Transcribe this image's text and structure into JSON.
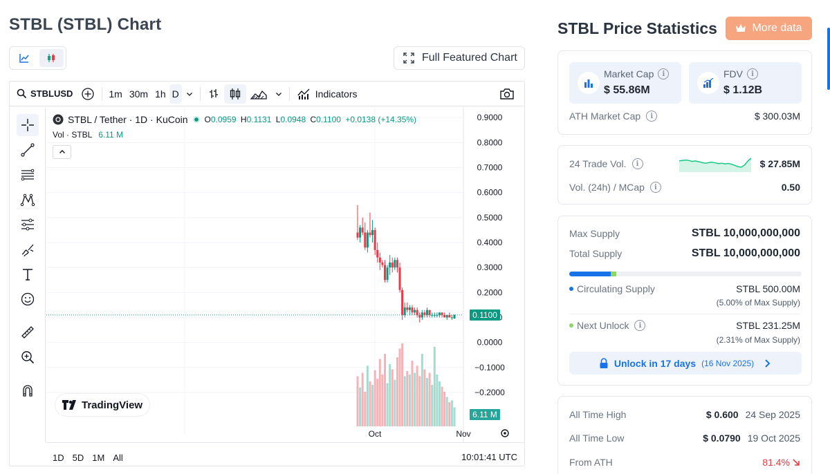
{
  "header": {
    "title": "STBL (STBL) Chart",
    "full_featured_label": "Full Featured Chart"
  },
  "toolbar": {
    "symbol": "STBLUSD",
    "intervals": [
      "1m",
      "30m",
      "1h",
      "D"
    ],
    "indicators_label": "Indicators"
  },
  "chart": {
    "legend_title": "STBL / Tether · 1D · KuCoin",
    "ohlc": {
      "o_label": "O",
      "o": "0.0959",
      "h_label": "H",
      "h": "0.1131",
      "l_label": "L",
      "l": "0.0948",
      "c_label": "C",
      "c": "0.1100",
      "change": "+0.0138 (+14.35%)"
    },
    "vol_label": "Vol · STBL",
    "vol_value": "6.11 M",
    "brand": "TradingView",
    "current_price_label": "0.1100",
    "current_vol_label": "6.11 M",
    "price_colors": {
      "up": "#089981",
      "down": "#f23645"
    },
    "ranges": [
      "1D",
      "5D",
      "1M",
      "All"
    ],
    "time": "10:01:41 UTC"
  },
  "chart_data": {
    "type": "candlestick",
    "y_ticks": [
      "0.9000",
      "0.8000",
      "0.7000",
      "0.6000",
      "0.5000",
      "0.4000",
      "0.3000",
      "0.2000",
      "0.1000",
      "0.0000",
      "−0.1000",
      "−0.2000"
    ],
    "x_ticks": [
      "Oct",
      "Nov"
    ],
    "ylim": [
      -0.25,
      0.92
    ],
    "candles": [
      [
        0.44,
        0.55,
        0.41,
        0.42
      ],
      [
        0.42,
        0.47,
        0.4,
        0.46
      ],
      [
        0.46,
        0.5,
        0.43,
        0.44
      ],
      [
        0.44,
        0.48,
        0.37,
        0.38
      ],
      [
        0.38,
        0.45,
        0.36,
        0.44
      ],
      [
        0.44,
        0.52,
        0.42,
        0.43
      ],
      [
        0.43,
        0.49,
        0.4,
        0.45
      ],
      [
        0.45,
        0.46,
        0.35,
        0.37
      ],
      [
        0.37,
        0.4,
        0.32,
        0.34
      ],
      [
        0.34,
        0.36,
        0.29,
        0.32
      ],
      [
        0.32,
        0.33,
        0.3,
        0.31
      ],
      [
        0.31,
        0.33,
        0.24,
        0.25
      ],
      [
        0.25,
        0.31,
        0.24,
        0.3
      ],
      [
        0.3,
        0.35,
        0.27,
        0.32
      ],
      [
        0.32,
        0.34,
        0.28,
        0.3
      ],
      [
        0.3,
        0.34,
        0.29,
        0.33
      ],
      [
        0.33,
        0.34,
        0.28,
        0.3
      ],
      [
        0.3,
        0.32,
        0.2,
        0.21
      ],
      [
        0.21,
        0.22,
        0.09,
        0.11
      ],
      [
        0.11,
        0.16,
        0.1,
        0.14
      ],
      [
        0.14,
        0.16,
        0.12,
        0.13
      ],
      [
        0.13,
        0.15,
        0.11,
        0.14
      ],
      [
        0.14,
        0.15,
        0.11,
        0.12
      ],
      [
        0.12,
        0.14,
        0.11,
        0.13
      ],
      [
        0.13,
        0.14,
        0.1,
        0.11
      ],
      [
        0.11,
        0.12,
        0.08,
        0.1
      ],
      [
        0.1,
        0.13,
        0.09,
        0.12
      ],
      [
        0.12,
        0.13,
        0.1,
        0.11
      ],
      [
        0.11,
        0.14,
        0.1,
        0.13
      ],
      [
        0.13,
        0.13,
        0.1,
        0.11
      ],
      [
        0.11,
        0.12,
        0.1,
        0.11
      ],
      [
        0.11,
        0.12,
        0.1,
        0.11
      ],
      [
        0.11,
        0.12,
        0.1,
        0.11
      ],
      [
        0.11,
        0.12,
        0.1,
        0.12
      ],
      [
        0.12,
        0.12,
        0.1,
        0.11
      ],
      [
        0.11,
        0.12,
        0.1,
        0.1
      ],
      [
        0.1,
        0.11,
        0.09,
        0.11
      ],
      [
        0.11,
        0.12,
        0.1,
        0.1
      ],
      [
        0.1,
        0.11,
        0.09,
        0.1
      ],
      [
        0.0959,
        0.1131,
        0.0948,
        0.11
      ]
    ],
    "volume": [
      58,
      45,
      62,
      40,
      70,
      52,
      48,
      65,
      55,
      78,
      60,
      84,
      50,
      72,
      66,
      54,
      80,
      90,
      96,
      58,
      64,
      60,
      76,
      62,
      70,
      58,
      84,
      66,
      56,
      62,
      48,
      92,
      60,
      52,
      46,
      40,
      34,
      28,
      30,
      22
    ]
  },
  "stats": {
    "title": "STBL Price Statistics",
    "more_label": "More data",
    "market_cap_label": "Market Cap",
    "market_cap": "$ 55.86M",
    "fdv_label": "FDV",
    "fdv": "$ 1.12B",
    "ath_mcap_label": "ATH Market Cap",
    "ath_mcap": "$ 300.03M",
    "trade_vol_label": "24 Trade Vol.",
    "trade_vol": "$ 27.85M",
    "vol_mcap_label": "Vol. (24h) / MCap",
    "vol_mcap": "0.50",
    "max_supply_label": "Max Supply",
    "max_supply": "STBL 10,000,000,000",
    "total_supply_label": "Total Supply",
    "total_supply": "STBL 10,000,000,000",
    "supply_progress": {
      "circulating": 0.05,
      "next_unlock": 0.0231
    },
    "circ_label": "Circulating Supply",
    "circ": "STBL 500.00M",
    "circ_pct": "(5.00% of Max Supply)",
    "next_unlock_label": "Next Unlock",
    "next_unlock": "STBL 231.25M",
    "next_unlock_pct": "(2.31% of Max Supply)",
    "unlock_btn_label": "Unlock in 17 days",
    "unlock_btn_date": "(16 Nov 2025)",
    "ath_label": "All Time High",
    "ath": "$ 0.600",
    "ath_date": "24 Sep 2025",
    "atl_label": "All Time Low",
    "atl": "$ 0.0790",
    "atl_date": "19 Oct 2025",
    "from_ath_label": "From ATH",
    "from_ath": "81.4%",
    "colors": {
      "accent": "#1872e8",
      "positive": "#16c784",
      "negative": "#ea3943",
      "cta": "#f6a57f"
    },
    "sparkline": [
      0.55,
      0.58,
      0.6,
      0.57,
      0.52,
      0.55,
      0.5,
      0.46,
      0.42,
      0.45,
      0.48,
      0.44,
      0.4,
      0.42,
      0.38,
      0.41,
      0.36,
      0.3,
      0.22,
      0.2,
      0.32,
      0.55,
      0.7
    ]
  }
}
